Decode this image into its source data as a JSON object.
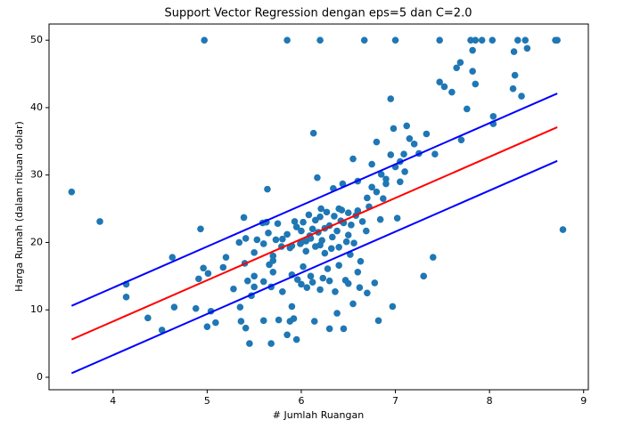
{
  "chart_data": {
    "type": "scatter",
    "title": "Support Vector Regression dengan eps=5 dan C=2.0",
    "x_label": "# Jumlah Ruangan",
    "y_label": "Harga Rumah (dalam ribuan dolar)",
    "xlim": [
      3.32,
      9.05
    ],
    "ylim": [
      -1.85,
      52.4
    ],
    "xticks": [
      4,
      5,
      6,
      7,
      8,
      9
    ],
    "yticks": [
      0,
      10,
      20,
      30,
      40,
      50
    ],
    "series": [
      {
        "type": "scatter",
        "color": "#1f77b4",
        "x": [
          3.56,
          3.86,
          4.14,
          4.14,
          4.37,
          4.52,
          4.63,
          4.65,
          4.88,
          4.91,
          4.93,
          4.96,
          4.97,
          5.0,
          5.01,
          5.04,
          5.09,
          5.17,
          5.2,
          5.28,
          5.34,
          5.35,
          5.36,
          5.39,
          5.41,
          5.41,
          5.43,
          5.45,
          5.47,
          5.5,
          5.53,
          5.59,
          5.6,
          5.63,
          5.64,
          5.66,
          5.68,
          5.68,
          5.7,
          5.73,
          5.76,
          5.79,
          5.85,
          5.85,
          5.88,
          5.88,
          5.9,
          5.92,
          5.93,
          5.95,
          5.96,
          5.99,
          6.0,
          6.02,
          6.05,
          6.06,
          6.09,
          6.12,
          6.13,
          6.14,
          6.15,
          6.17,
          6.2,
          6.2,
          6.21,
          6.23,
          6.25,
          6.28,
          6.3,
          6.32,
          6.34,
          6.36,
          6.38,
          6.4,
          6.42,
          6.44,
          6.45,
          6.47,
          6.5,
          6.52,
          6.55,
          6.55,
          6.58,
          6.6,
          6.62,
          6.63,
          6.67,
          6.69,
          6.72,
          6.75,
          6.78,
          6.8,
          6.82,
          6.84,
          6.87,
          6.9,
          6.95,
          6.97,
          6.98,
          7.0,
          7.02,
          7.05,
          7.09,
          7.12,
          7.15,
          7.2,
          7.25,
          7.3,
          7.33,
          7.4,
          7.42,
          7.47,
          7.47,
          7.52,
          7.6,
          7.65,
          7.69,
          7.7,
          7.76,
          7.8,
          7.82,
          7.85,
          7.92,
          8.03,
          8.04,
          8.25,
          8.26,
          8.27,
          8.3,
          8.38,
          8.4,
          8.7,
          8.72,
          8.78,
          8.34,
          8.04,
          7.85,
          7.82,
          5.8,
          5.85,
          5.9,
          5.95,
          6.0,
          6.02,
          6.05,
          6.08,
          6.1,
          6.12,
          6.15,
          6.18,
          6.2,
          6.22,
          6.25,
          6.27,
          6.3,
          6.33,
          6.35,
          6.38,
          6.4,
          6.43,
          6.45,
          6.48,
          6.5,
          6.53,
          6.56,
          6.6,
          6.65,
          6.7,
          6.75,
          6.8,
          6.85,
          6.9,
          6.95,
          7.0,
          7.05,
          7.1,
          5.5,
          5.6,
          5.65,
          5.7,
          5.75,
          5.6,
          5.7,
          5.8,
          5.9,
          6.0,
          6.1,
          6.2,
          6.3,
          6.4,
          6.5,
          6.6,
          6.7,
          5.4,
          5.5
        ],
        "values": [
          27.5,
          23.1,
          13.8,
          11.9,
          8.8,
          7.0,
          17.8,
          10.4,
          10.2,
          14.6,
          22.0,
          16.2,
          50,
          7.5,
          15.4,
          9.8,
          8.1,
          16.3,
          17.8,
          13.1,
          20.0,
          10.4,
          8.3,
          23.7,
          20.6,
          7.3,
          14.3,
          5.0,
          12.1,
          15.0,
          20.4,
          22.9,
          8.4,
          23.0,
          27.9,
          16.7,
          13.4,
          5.0,
          17.3,
          20.4,
          8.5,
          19.4,
          6.3,
          50,
          19.2,
          8.3,
          10.5,
          8.7,
          23.1,
          5.6,
          14.5,
          19.8,
          21.7,
          16.4,
          20.2,
          13.3,
          21.0,
          14.1,
          36.2,
          8.3,
          23.3,
          29.6,
          50,
          19.6,
          25.0,
          14.7,
          22.1,
          16.1,
          7.2,
          19.1,
          28.0,
          12.7,
          9.5,
          25.0,
          23.2,
          28.7,
          7.2,
          14.4,
          21.1,
          18.2,
          32.4,
          10.9,
          24.0,
          29.1,
          13.3,
          17.2,
          50,
          21.7,
          25.3,
          31.6,
          14.0,
          34.9,
          8.4,
          23.4,
          26.5,
          29.4,
          41.3,
          10.5,
          36.9,
          50,
          23.6,
          32.0,
          33.1,
          37.3,
          35.4,
          34.6,
          33.2,
          15.0,
          36.1,
          17.8,
          33.1,
          43.8,
          50,
          43.1,
          42.3,
          45.9,
          46.7,
          35.2,
          39.8,
          50,
          45.4,
          50,
          50,
          50,
          37.6,
          42.8,
          48.3,
          44.8,
          50,
          50,
          48.8,
          50,
          50,
          21.9,
          41.7,
          38.7,
          43.5,
          48.5,
          20.5,
          21.2,
          19.5,
          22.3,
          20.0,
          23.0,
          18.7,
          24.1,
          20.6,
          22.0,
          19.4,
          21.5,
          23.8,
          20.3,
          18.4,
          24.5,
          22.5,
          20.8,
          23.9,
          21.7,
          19.3,
          24.8,
          22.9,
          20.1,
          24.4,
          22.6,
          19.9,
          24.7,
          23.1,
          26.6,
          28.2,
          27.5,
          30.1,
          28.7,
          33.0,
          31.2,
          29.0,
          30.5,
          18.5,
          19.8,
          21.4,
          18.0,
          22.8,
          14.2,
          15.6,
          12.7,
          15.2,
          13.8,
          15.0,
          13.0,
          14.3,
          16.6,
          13.9,
          15.6,
          12.5,
          16.9,
          13.4
        ]
      },
      {
        "type": "line",
        "color": "red",
        "x": [
          3.56,
          8.72
        ],
        "values": [
          5.6,
          37.1
        ]
      },
      {
        "type": "line",
        "color": "blue",
        "x": [
          3.56,
          8.72
        ],
        "values": [
          10.6,
          42.1
        ]
      },
      {
        "type": "line",
        "color": "blue",
        "x": [
          3.56,
          8.72
        ],
        "values": [
          0.6,
          32.1
        ]
      }
    ]
  }
}
